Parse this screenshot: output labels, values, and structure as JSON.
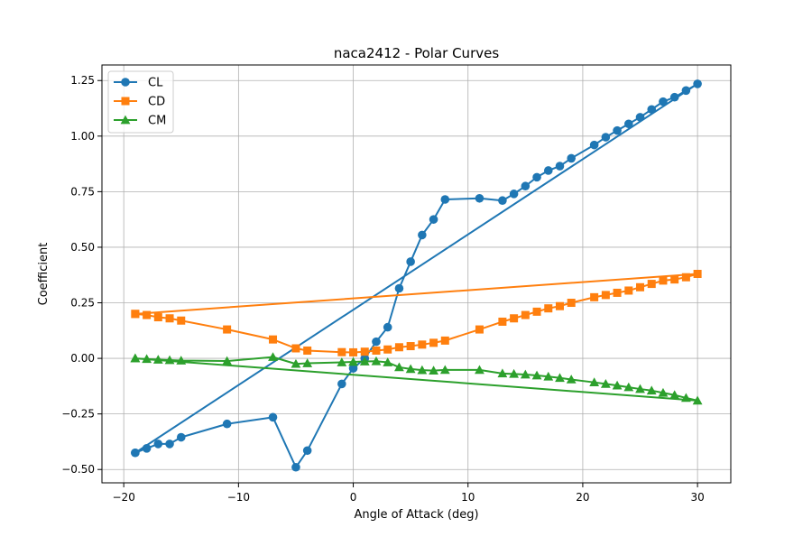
{
  "chart_data": {
    "type": "line",
    "title": "naca2412 - Polar Curves",
    "xlabel": "Angle of Attack (deg)",
    "ylabel": "Coefficient",
    "xlim": [
      -21.9,
      32.9
    ],
    "ylim": [
      -0.56,
      1.32
    ],
    "xticks": [
      -20,
      -10,
      0,
      10,
      20,
      30
    ],
    "xtick_labels": [
      "−20",
      "−10",
      "0",
      "10",
      "20",
      "30"
    ],
    "yticks": [
      -0.5,
      -0.25,
      0.0,
      0.25,
      0.5,
      0.75,
      1.0,
      1.25
    ],
    "ytick_labels": [
      "−0.50",
      "−0.25",
      "0.00",
      "0.25",
      "0.50",
      "0.75",
      "1.00",
      "1.25"
    ],
    "grid": true,
    "legend_position": "top-left",
    "x": [
      -19,
      -18,
      -17,
      -16,
      -15,
      -11,
      -7,
      -5,
      -4,
      -1,
      0,
      1,
      2,
      3,
      4,
      5,
      6,
      7,
      8,
      11,
      13,
      14,
      15,
      16,
      17,
      18,
      19,
      21,
      22,
      23,
      24,
      25,
      26,
      27,
      28,
      29,
      30,
      -19
    ],
    "series": [
      {
        "name": "CL",
        "color": "#1f77b4",
        "marker": "circle",
        "values": [
          -0.425,
          -0.405,
          -0.385,
          -0.385,
          -0.355,
          -0.295,
          -0.265,
          -0.49,
          -0.415,
          -0.115,
          -0.045,
          0.0,
          0.075,
          0.14,
          0.315,
          0.435,
          0.555,
          0.625,
          0.715,
          0.72,
          0.71,
          0.74,
          0.775,
          0.815,
          0.845,
          0.865,
          0.9,
          0.96,
          0.995,
          1.025,
          1.055,
          1.085,
          1.12,
          1.155,
          1.175,
          1.205,
          1.235,
          -0.425
        ]
      },
      {
        "name": "CD",
        "color": "#ff7f0e",
        "marker": "square",
        "values": [
          0.2,
          0.195,
          0.185,
          0.18,
          0.17,
          0.13,
          0.085,
          0.045,
          0.035,
          0.028,
          0.027,
          0.03,
          0.035,
          0.04,
          0.05,
          0.055,
          0.062,
          0.07,
          0.08,
          0.13,
          0.165,
          0.18,
          0.195,
          0.21,
          0.225,
          0.235,
          0.25,
          0.275,
          0.285,
          0.295,
          0.305,
          0.32,
          0.335,
          0.35,
          0.355,
          0.365,
          0.38,
          0.2
        ]
      },
      {
        "name": "CM",
        "color": "#2ca02c",
        "marker": "triangle",
        "values": [
          0.0,
          -0.003,
          -0.006,
          -0.008,
          -0.01,
          -0.012,
          0.006,
          -0.025,
          -0.022,
          -0.018,
          -0.016,
          -0.014,
          -0.013,
          -0.018,
          -0.04,
          -0.048,
          -0.053,
          -0.055,
          -0.052,
          -0.052,
          -0.068,
          -0.07,
          -0.073,
          -0.077,
          -0.082,
          -0.088,
          -0.095,
          -0.108,
          -0.115,
          -0.122,
          -0.13,
          -0.138,
          -0.145,
          -0.155,
          -0.165,
          -0.178,
          -0.19,
          0.0
        ]
      }
    ]
  }
}
